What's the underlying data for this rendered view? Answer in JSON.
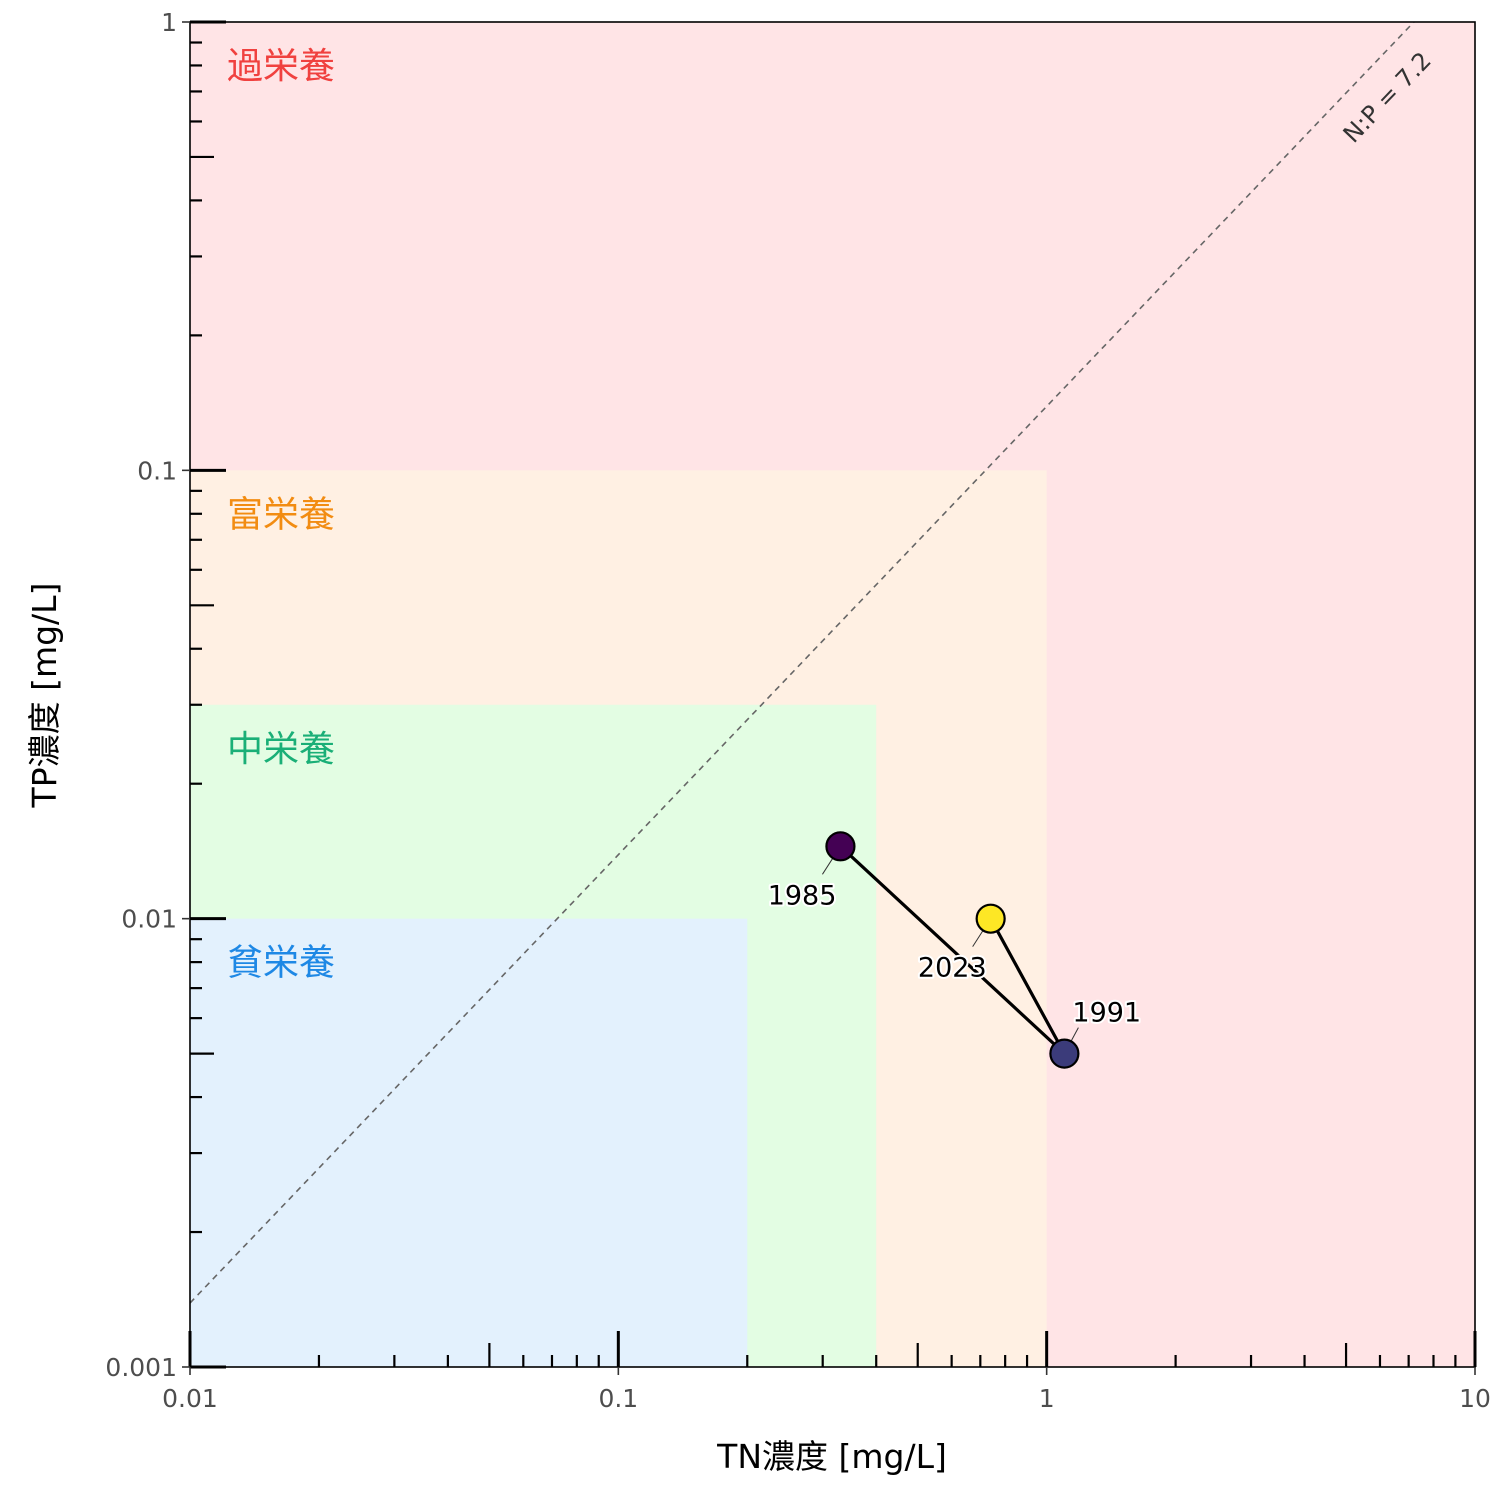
{
  "chart_data": {
    "type": "scatter",
    "xlabel": "TN濃度 [mg/L]",
    "ylabel": "TP濃度 [mg/L]",
    "x_scale": "log",
    "y_scale": "log",
    "xlim": [
      0.01,
      10
    ],
    "ylim": [
      0.001,
      1
    ],
    "x_ticks": [
      {
        "value": 0.01,
        "label": "0.01"
      },
      {
        "value": 0.1,
        "label": "0.1"
      },
      {
        "value": 1,
        "label": "1"
      },
      {
        "value": 10,
        "label": "10"
      }
    ],
    "y_ticks": [
      {
        "value": 0.001,
        "label": "0.001"
      },
      {
        "value": 0.01,
        "label": "0.01"
      },
      {
        "value": 0.1,
        "label": "0.1"
      },
      {
        "value": 1,
        "label": "1"
      }
    ],
    "grid": false,
    "zones": [
      {
        "label": "過栄養",
        "tn_max": 10,
        "tp_max": 1,
        "fill": "#ffe4e6",
        "text_color": "#f0413f"
      },
      {
        "label": "富栄養",
        "tn_max": 1,
        "tp_max": 0.1,
        "fill": "#fff0e3",
        "text_color": "#f28c12"
      },
      {
        "label": "中栄養",
        "tn_max": 0.4,
        "tp_max": 0.03,
        "fill": "#e3fde3",
        "text_color": "#1aaf77"
      },
      {
        "label": "貧栄養",
        "tn_max": 0.2,
        "tp_max": 0.01,
        "fill": "#e3f1fd",
        "text_color": "#1e88e5"
      }
    ],
    "ratio_line": {
      "label": "N:P = 7.2",
      "ratio": 7.2
    },
    "points": [
      {
        "label": "1985",
        "x": 0.33,
        "y": 0.0145,
        "color": "#440154",
        "label_side": "below-left"
      },
      {
        "label": "1991",
        "x": 1.1,
        "y": 0.005,
        "color": "#3b3b7a",
        "label_side": "above-right"
      },
      {
        "label": "2023",
        "x": 0.74,
        "y": 0.01,
        "color": "#fde725",
        "label_side": "below-left"
      }
    ],
    "path_order": [
      "1985",
      "1991",
      "2023"
    ]
  }
}
